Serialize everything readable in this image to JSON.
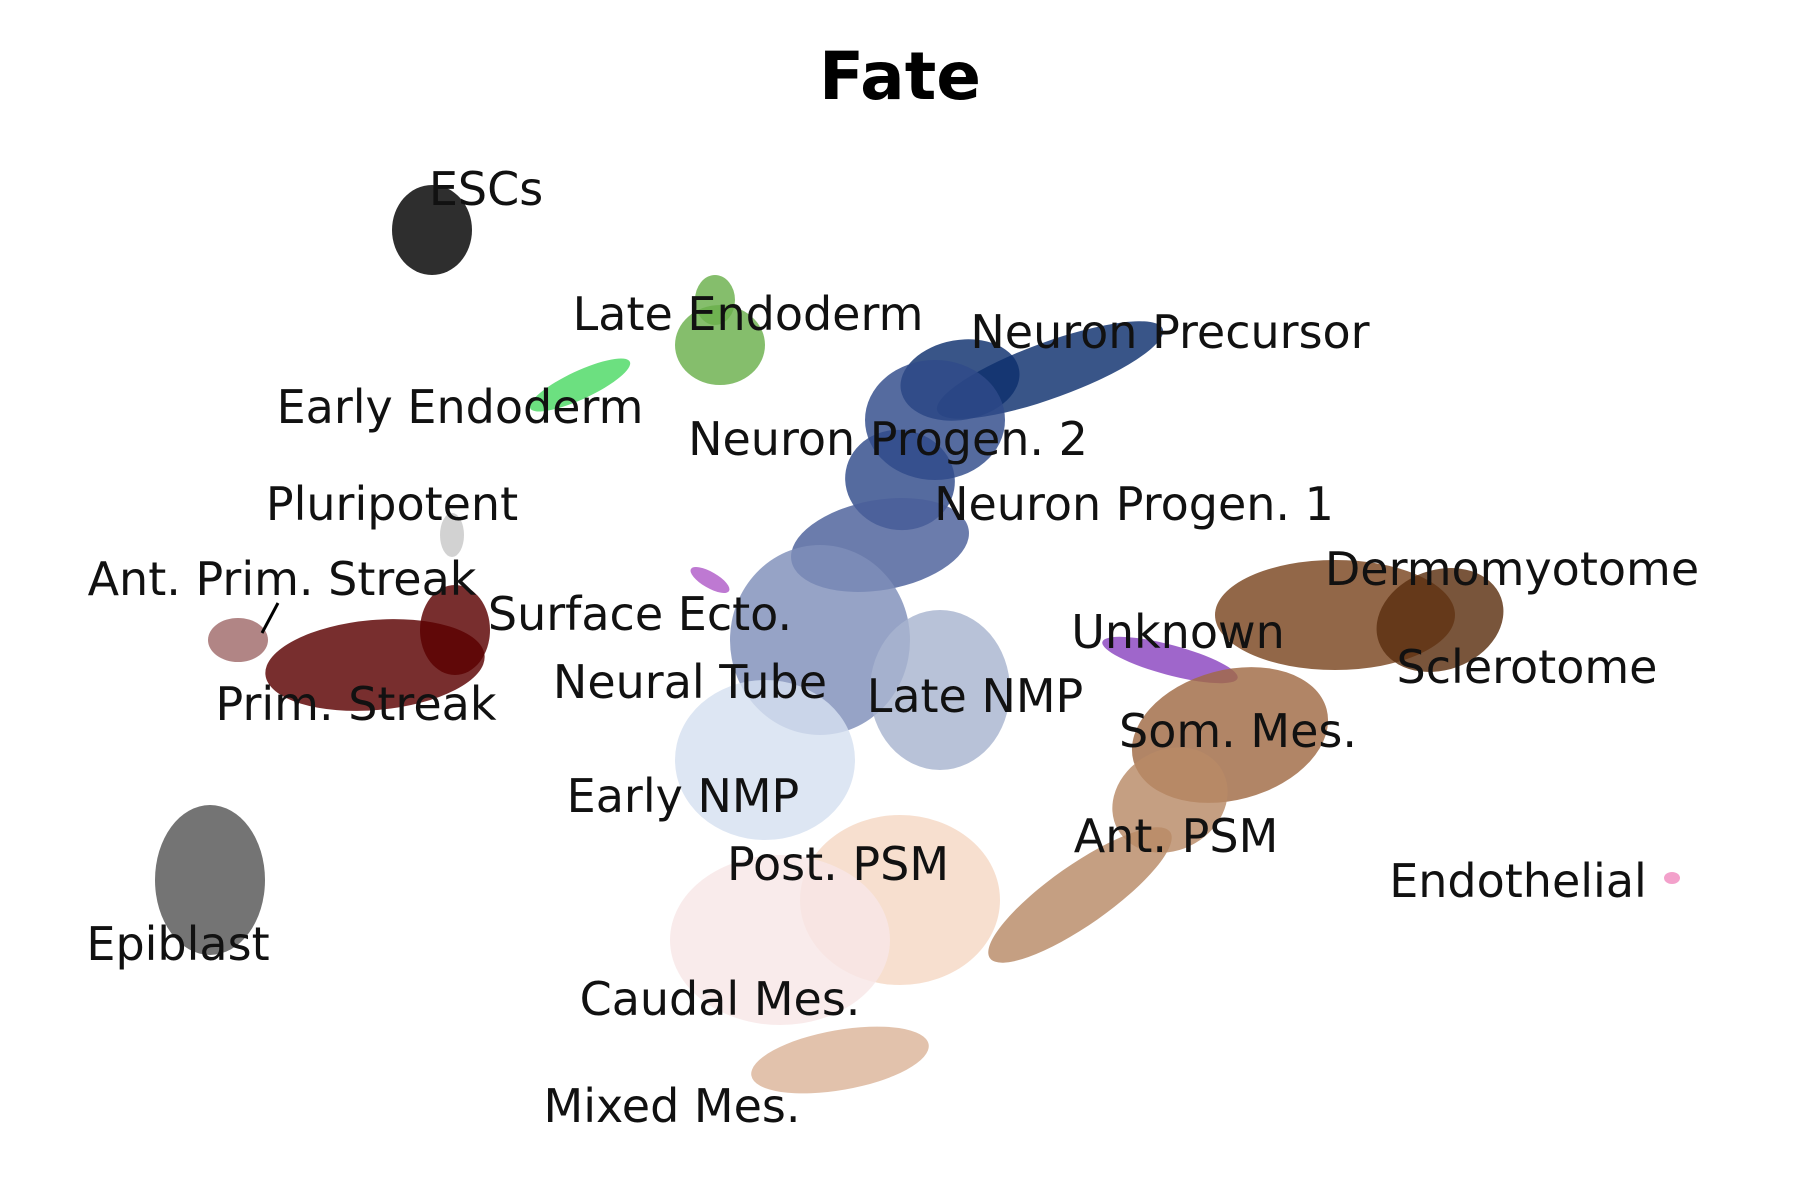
{
  "chart_data": {
    "type": "scatter",
    "title": "Fate",
    "xlabel": "",
    "ylabel": "",
    "grid": false,
    "axes_visible": false,
    "series": [
      {
        "name": "ESCs",
        "color": "#000000"
      },
      {
        "name": "Late Endoderm",
        "color": "#6ab04c"
      },
      {
        "name": "Early Endoderm",
        "color": "#4cd964"
      },
      {
        "name": "Neuron Precursor",
        "color": "#0d2f6e"
      },
      {
        "name": "Neuron Progen. 2",
        "color": "#2f4b8a"
      },
      {
        "name": "Neuron Progen. 1",
        "color": "#4a5f9a"
      },
      {
        "name": "Pluripotent",
        "color": "#c8c8c8"
      },
      {
        "name": "Ant. Prim. Streak",
        "color": "#a06a6a"
      },
      {
        "name": "Prim. Streak",
        "color": "#5a0000"
      },
      {
        "name": "Surface Ecto.",
        "color": "#b05cc8"
      },
      {
        "name": "Neural Tube",
        "color": "#7f8fba"
      },
      {
        "name": "Late NMP",
        "color": "#a8b4d0"
      },
      {
        "name": "Early NMP",
        "color": "#d5e0f0"
      },
      {
        "name": "Unknown",
        "color": "#8a44c0"
      },
      {
        "name": "Dermomyotome",
        "color": "#7a4520"
      },
      {
        "name": "Sclerotome",
        "color": "#5c3010"
      },
      {
        "name": "Som. Mes.",
        "color": "#a06a44"
      },
      {
        "name": "Ant. PSM",
        "color": "#b88a66"
      },
      {
        "name": "Post. PSM",
        "color": "#f5d8c4"
      },
      {
        "name": "Caudal Mes.",
        "color": "#f8e6e6"
      },
      {
        "name": "Mixed Mes.",
        "color": "#dcb49a"
      },
      {
        "name": "Epiblast",
        "color": "#555555"
      },
      {
        "name": "Endothelial",
        "color": "#f08cc0"
      }
    ]
  }
}
